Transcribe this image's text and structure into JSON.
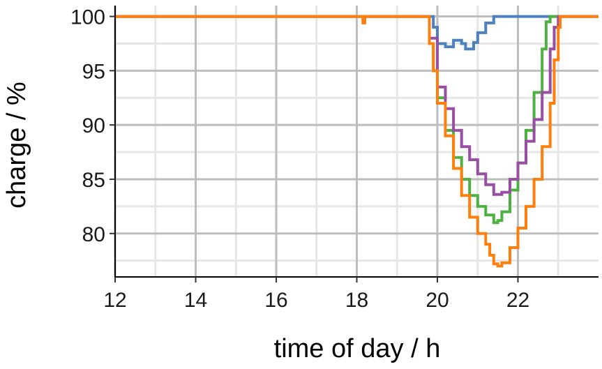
{
  "chart_data": {
    "type": "line",
    "title": "",
    "xlabel": "time of day / h",
    "ylabel": "charge / %",
    "xlim": [
      12,
      24
    ],
    "ylim": [
      76,
      101
    ],
    "x_ticks": [
      12,
      14,
      16,
      18,
      20,
      22
    ],
    "x_tick_labels": [
      "12",
      "14",
      "16",
      "18",
      "20",
      "22"
    ],
    "y_ticks": [
      80,
      85,
      90,
      95,
      100
    ],
    "y_tick_labels": [
      "80",
      "85",
      "90",
      "95",
      "100"
    ],
    "grid": true,
    "legend": "none",
    "step": true,
    "series": [
      {
        "color": "#4c80bf",
        "points": [
          [
            12,
            100
          ],
          [
            19.8,
            100
          ],
          [
            19.9,
            99
          ],
          [
            20.0,
            97.5
          ],
          [
            20.2,
            97.2
          ],
          [
            20.4,
            97.8
          ],
          [
            20.6,
            97.5
          ],
          [
            20.7,
            97.0
          ],
          [
            20.9,
            97.6
          ],
          [
            21.0,
            98.5
          ],
          [
            21.2,
            99.4
          ],
          [
            21.4,
            100
          ],
          [
            24,
            100
          ]
        ]
      },
      {
        "color": "#4fb042",
        "points": [
          [
            12,
            100
          ],
          [
            19.7,
            100
          ],
          [
            19.8,
            97.5
          ],
          [
            19.9,
            95
          ],
          [
            20.0,
            92.5
          ],
          [
            20.2,
            89.5
          ],
          [
            20.4,
            87
          ],
          [
            20.6,
            85
          ],
          [
            20.8,
            83.5
          ],
          [
            21.0,
            82.5
          ],
          [
            21.2,
            81.7
          ],
          [
            21.4,
            81.0
          ],
          [
            21.5,
            81.2
          ],
          [
            21.6,
            82.0
          ],
          [
            21.8,
            84.0
          ],
          [
            22.0,
            86.5
          ],
          [
            22.2,
            89.5
          ],
          [
            22.4,
            93.0
          ],
          [
            22.6,
            97.0
          ],
          [
            22.7,
            99.5
          ],
          [
            22.8,
            100
          ],
          [
            24,
            100
          ]
        ]
      },
      {
        "color": "#984ea3",
        "points": [
          [
            12,
            100
          ],
          [
            19.7,
            100
          ],
          [
            19.8,
            98
          ],
          [
            20.0,
            93.5
          ],
          [
            20.2,
            91.5
          ],
          [
            20.4,
            89.5
          ],
          [
            20.6,
            88
          ],
          [
            20.8,
            86.8
          ],
          [
            21.0,
            85.5
          ],
          [
            21.2,
            84.5
          ],
          [
            21.4,
            83.6
          ],
          [
            21.6,
            83.8
          ],
          [
            21.8,
            85
          ],
          [
            22.0,
            86.5
          ],
          [
            22.2,
            88.5
          ],
          [
            22.4,
            90.5
          ],
          [
            22.6,
            93
          ],
          [
            22.8,
            97
          ],
          [
            22.9,
            99
          ],
          [
            23.0,
            100
          ],
          [
            24,
            100
          ]
        ]
      },
      {
        "color": "#ff7f0e",
        "points": [
          [
            12,
            100
          ],
          [
            18.1,
            100
          ],
          [
            18.15,
            99.4
          ],
          [
            18.2,
            100
          ],
          [
            19.7,
            100
          ],
          [
            19.8,
            97.5
          ],
          [
            19.9,
            95
          ],
          [
            20.0,
            92
          ],
          [
            20.2,
            89
          ],
          [
            20.4,
            86
          ],
          [
            20.6,
            83.5
          ],
          [
            20.8,
            81.5
          ],
          [
            21.0,
            80
          ],
          [
            21.2,
            79
          ],
          [
            21.3,
            78
          ],
          [
            21.4,
            77.2
          ],
          [
            21.5,
            77.0
          ],
          [
            21.6,
            77.3
          ],
          [
            21.8,
            78.7
          ],
          [
            22.0,
            80.5
          ],
          [
            22.2,
            82.5
          ],
          [
            22.4,
            85
          ],
          [
            22.6,
            88
          ],
          [
            22.8,
            92
          ],
          [
            22.9,
            96
          ],
          [
            23.0,
            99
          ],
          [
            23.05,
            100
          ],
          [
            24,
            100
          ]
        ]
      }
    ]
  }
}
